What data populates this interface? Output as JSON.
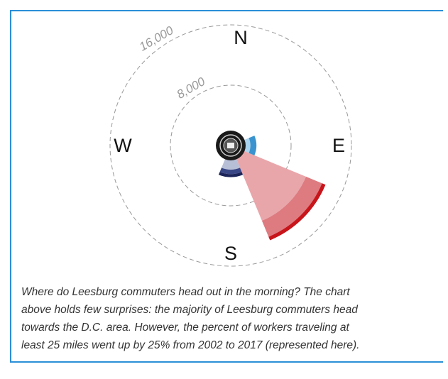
{
  "chart_data": {
    "type": "polar-bar",
    "axis_labels": [
      "N",
      "E",
      "S",
      "W"
    ],
    "rlim": [
      0,
      16000
    ],
    "rticks": [
      {
        "value": 8000,
        "label": "8,000"
      },
      {
        "value": 16000,
        "label": "16,000"
      }
    ],
    "series": [
      {
        "values": [
          0,
          0,
          2600,
          10800,
          3200,
          0,
          0,
          0
        ],
        "colors": [
          null,
          null,
          "#a9d3ee",
          "#e9a6aa",
          "#b7bfd6",
          null,
          null,
          null
        ]
      },
      {
        "values": [
          0,
          0,
          800,
          2300,
          600,
          0,
          0,
          0
        ],
        "colors": [
          null,
          null,
          "#3a93cf",
          "#dd7b80",
          "#3a4786",
          null,
          null,
          null
        ]
      },
      {
        "values": [
          0,
          0,
          0,
          500,
          400,
          0,
          0,
          0
        ],
        "colors": [
          null,
          null,
          null,
          "#c8151b",
          "#1c2559",
          null,
          null,
          null
        ]
      }
    ],
    "caption": [
      "Where do Leesburg commuters head out in the morning? The chart",
      "above holds few surprises: the majority of Leesburg commuters head",
      "towards the D.C. area. However, the percent of workers traveling at",
      "least 25 miles went up by 25% from 2002 to 2017 (represented here)."
    ]
  }
}
